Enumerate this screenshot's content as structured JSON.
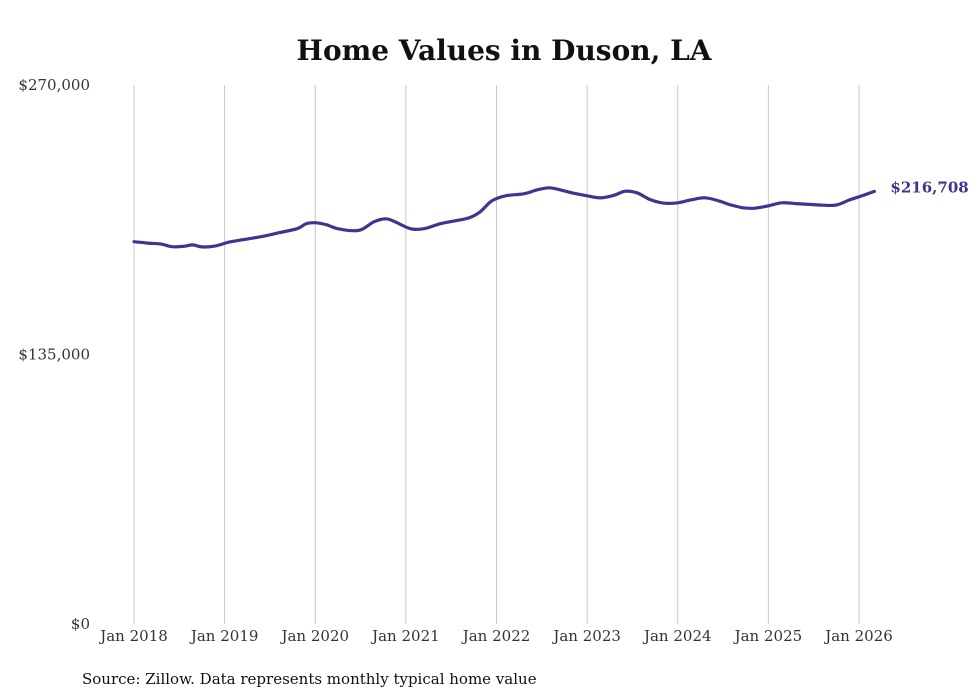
{
  "chart_data": {
    "type": "line",
    "title": "Home Values in Duson, LA",
    "xlabel": "",
    "ylabel": "",
    "ylim": [
      0,
      270000
    ],
    "y_ticks": [
      {
        "value": 0,
        "label": "$0"
      },
      {
        "value": 135000,
        "label": "$135,000"
      },
      {
        "value": 270000,
        "label": "$270,000"
      }
    ],
    "x_ticks": [
      {
        "value": 2018.0,
        "label": "Jan 2018"
      },
      {
        "value": 2019.0,
        "label": "Jan 2019"
      },
      {
        "value": 2020.0,
        "label": "Jan 2020"
      },
      {
        "value": 2021.0,
        "label": "Jan 2021"
      },
      {
        "value": 2022.0,
        "label": "Jan 2022"
      },
      {
        "value": 2023.0,
        "label": "Jan 2023"
      },
      {
        "value": 2024.0,
        "label": "Jan 2024"
      },
      {
        "value": 2025.0,
        "label": "Jan 2025"
      },
      {
        "value": 2026.0,
        "label": "Jan 2026"
      }
    ],
    "xlim": [
      2018.0,
      2026.17
    ],
    "grid": "vertical",
    "line_color": "#3d3590",
    "series": [
      {
        "end_label": "$216,708",
        "points": [
          [
            2018.0,
            191500
          ],
          [
            2018.15,
            190800
          ],
          [
            2018.3,
            190300
          ],
          [
            2018.42,
            189000
          ],
          [
            2018.55,
            189200
          ],
          [
            2018.65,
            189900
          ],
          [
            2018.75,
            188900
          ],
          [
            2018.9,
            189400
          ],
          [
            2019.05,
            191300
          ],
          [
            2019.2,
            192500
          ],
          [
            2019.4,
            194000
          ],
          [
            2019.6,
            196000
          ],
          [
            2019.8,
            198000
          ],
          [
            2019.9,
            200500
          ],
          [
            2020.0,
            201000
          ],
          [
            2020.12,
            200000
          ],
          [
            2020.25,
            198000
          ],
          [
            2020.42,
            197000
          ],
          [
            2020.52,
            197800
          ],
          [
            2020.65,
            201500
          ],
          [
            2020.78,
            203000
          ],
          [
            2020.88,
            201500
          ],
          [
            2021.05,
            198000
          ],
          [
            2021.2,
            198000
          ],
          [
            2021.38,
            200500
          ],
          [
            2021.55,
            202000
          ],
          [
            2021.7,
            203500
          ],
          [
            2021.82,
            206500
          ],
          [
            2021.95,
            212000
          ],
          [
            2022.1,
            214500
          ],
          [
            2022.3,
            215500
          ],
          [
            2022.45,
            217500
          ],
          [
            2022.58,
            218500
          ],
          [
            2022.7,
            217500
          ],
          [
            2022.85,
            215800
          ],
          [
            2023.0,
            214500
          ],
          [
            2023.15,
            213500
          ],
          [
            2023.3,
            214800
          ],
          [
            2023.42,
            216800
          ],
          [
            2023.55,
            216000
          ],
          [
            2023.7,
            212500
          ],
          [
            2023.85,
            210800
          ],
          [
            2024.0,
            211000
          ],
          [
            2024.15,
            212500
          ],
          [
            2024.3,
            213500
          ],
          [
            2024.45,
            212000
          ],
          [
            2024.58,
            210000
          ],
          [
            2024.72,
            208500
          ],
          [
            2024.85,
            208300
          ],
          [
            2025.0,
            209500
          ],
          [
            2025.15,
            211000
          ],
          [
            2025.3,
            210600
          ],
          [
            2025.45,
            210200
          ],
          [
            2025.6,
            209800
          ],
          [
            2025.75,
            209900
          ],
          [
            2025.9,
            212500
          ],
          [
            2026.05,
            214800
          ],
          [
            2026.17,
            216708
          ]
        ]
      }
    ]
  },
  "footer": {
    "source": "Source: Zillow. Data represents monthly typical home value"
  }
}
